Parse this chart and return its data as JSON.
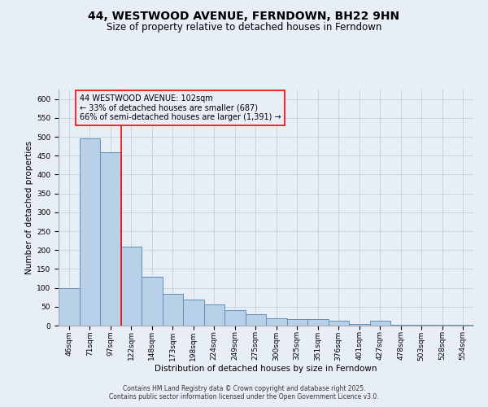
{
  "title": "44, WESTWOOD AVENUE, FERNDOWN, BH22 9HN",
  "subtitle": "Size of property relative to detached houses in Ferndown",
  "xlabel": "Distribution of detached houses by size in Ferndown",
  "ylabel": "Number of detached properties",
  "categories": [
    "46sqm",
    "71sqm",
    "97sqm",
    "122sqm",
    "148sqm",
    "173sqm",
    "198sqm",
    "224sqm",
    "249sqm",
    "275sqm",
    "300sqm",
    "325sqm",
    "351sqm",
    "376sqm",
    "401sqm",
    "427sqm",
    "478sqm",
    "503sqm",
    "528sqm",
    "554sqm"
  ],
  "values": [
    100,
    495,
    460,
    210,
    130,
    83,
    68,
    55,
    40,
    30,
    20,
    18,
    18,
    13,
    5,
    13,
    3,
    3,
    3,
    2
  ],
  "bar_color": "#b8d0e8",
  "bar_edge_color": "#6090b8",
  "grid_color": "#c5d5e5",
  "bg_color": "#e8eef6",
  "property_line_x": 2.5,
  "property_line_color": "red",
  "annotation_text": "44 WESTWOOD AVENUE: 102sqm\n← 33% of detached houses are smaller (687)\n66% of semi-detached houses are larger (1,391) →",
  "annotation_box_color": "red",
  "ylim": [
    0,
    625
  ],
  "yticks": [
    0,
    50,
    100,
    150,
    200,
    250,
    300,
    350,
    400,
    450,
    500,
    550,
    600
  ],
  "footer": "Contains HM Land Registry data © Crown copyright and database right 2025.\nContains public sector information licensed under the Open Government Licence v3.0.",
  "title_fontsize": 10,
  "subtitle_fontsize": 8.5,
  "annot_fontsize": 7,
  "axis_label_fontsize": 7.5,
  "tick_fontsize": 6.5,
  "ylabel_fontsize": 7.5,
  "footer_fontsize": 5.5
}
